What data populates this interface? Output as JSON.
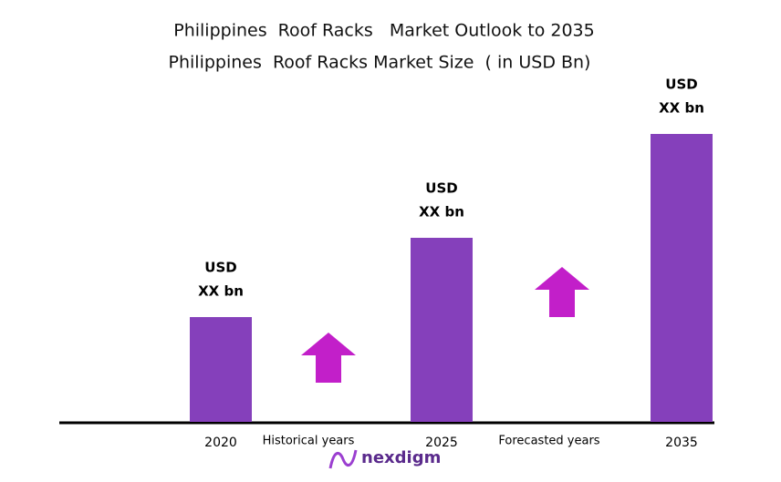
{
  "chart_data": {
    "type": "bar",
    "title": "Philippines  Roof Racks   Market Outlook to 2035",
    "subtitle": "Philippines  Roof Racks Market Size  ( in USD Bn)",
    "categories": [
      "2020",
      "2025",
      "2035"
    ],
    "values": [
      115,
      202,
      316
    ],
    "value_labels": [
      [
        "USD",
        "XX bn"
      ],
      [
        "USD",
        "XX bn"
      ],
      [
        "USD",
        "XX bn"
      ]
    ],
    "color": "#8540bb",
    "annotations": [
      "Historical years",
      "Forecasted years"
    ],
    "logo": "nexdigm"
  }
}
